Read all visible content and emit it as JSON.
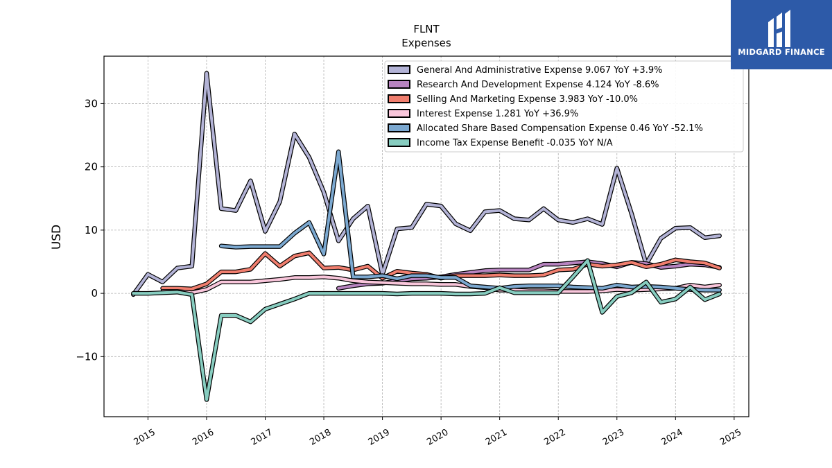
{
  "chart_data": {
    "type": "line",
    "title": "FLNT",
    "subtitle": "Expenses",
    "ylabel": "USD",
    "xlabel": "",
    "ylim": [
      -19.5,
      37.5
    ],
    "xlim": [
      2014.25,
      2025.25
    ],
    "yticks": [
      -10,
      0,
      10,
      20,
      30
    ],
    "xticks": [
      2015,
      2016,
      2017,
      2018,
      2019,
      2020,
      2021,
      2022,
      2023,
      2024,
      2025
    ],
    "grid": true,
    "legend_position": "top-right",
    "series": [
      {
        "name": "General And Administrative Expense  9.067 YoY +3.9%",
        "color": "#b3b3d6",
        "x": [
          2014.75,
          2015.0,
          2015.25,
          2015.5,
          2015.75,
          2016.0,
          2016.25,
          2016.5,
          2016.75,
          2017.0,
          2017.25,
          2017.5,
          2017.75,
          2018.0,
          2018.25,
          2018.5,
          2018.75,
          2019.0,
          2019.25,
          2019.5,
          2019.75,
          2020.0,
          2020.25,
          2020.5,
          2020.75,
          2021.0,
          2021.25,
          2021.5,
          2021.75,
          2022.0,
          2022.25,
          2022.5,
          2022.75,
          2023.0,
          2023.25,
          2023.5,
          2023.75,
          2024.0,
          2024.25,
          2024.5,
          2024.75
        ],
        "y": [
          -0.2,
          3.0,
          1.8,
          4.0,
          4.3,
          34.8,
          13.4,
          13.1,
          17.8,
          9.8,
          14.5,
          25.2,
          21.5,
          16.0,
          8.3,
          11.8,
          13.8,
          3.0,
          10.2,
          10.4,
          14.1,
          13.8,
          11.0,
          9.9,
          12.9,
          13.1,
          11.8,
          11.6,
          13.4,
          11.6,
          11.2,
          11.8,
          10.9,
          19.8,
          12.6,
          4.6,
          8.7,
          10.3,
          10.4,
          8.8,
          9.1
        ]
      },
      {
        "name": "Research And Development Expense  4.124 YoY -8.6%",
        "color": "#b884c0",
        "x": [
          2018.25,
          2018.5,
          2018.75,
          2019.0,
          2019.25,
          2019.5,
          2019.75,
          2020.0,
          2020.25,
          2020.5,
          2020.75,
          2021.0,
          2021.25,
          2021.5,
          2021.75,
          2022.0,
          2022.25,
          2022.5,
          2022.75,
          2023.0,
          2023.25,
          2023.5,
          2023.75,
          2024.0,
          2024.25,
          2024.5,
          2024.75
        ],
        "y": [
          0.8,
          1.2,
          1.5,
          1.6,
          2.0,
          2.3,
          2.4,
          2.6,
          3.0,
          3.3,
          3.6,
          3.7,
          3.7,
          3.7,
          4.6,
          4.6,
          4.8,
          5.0,
          4.7,
          4.2,
          4.9,
          4.7,
          4.1,
          4.3,
          4.6,
          4.5,
          4.1
        ]
      },
      {
        "name": "Selling And Marketing Expense  3.983 YoY -10.0%",
        "color": "#f07e6e",
        "x": [
          2015.25,
          2015.5,
          2015.75,
          2016.0,
          2016.25,
          2016.5,
          2016.75,
          2017.0,
          2017.25,
          2017.5,
          2017.75,
          2018.0,
          2018.25,
          2018.5,
          2018.75,
          2019.0,
          2019.25,
          2019.5,
          2019.75,
          2020.0,
          2020.25,
          2020.5,
          2020.75,
          2021.0,
          2021.25,
          2021.5,
          2021.75,
          2022.0,
          2022.25,
          2022.5,
          2022.75,
          2023.0,
          2023.25,
          2023.5,
          2023.75,
          2024.0,
          2024.25,
          2024.5,
          2024.75
        ],
        "y": [
          0.8,
          0.8,
          0.7,
          1.5,
          3.4,
          3.4,
          3.8,
          6.3,
          4.3,
          5.9,
          6.4,
          4.0,
          4.1,
          3.7,
          4.3,
          2.4,
          3.5,
          3.2,
          3.0,
          2.4,
          2.8,
          2.8,
          2.8,
          2.9,
          2.8,
          2.8,
          2.9,
          3.7,
          3.8,
          4.6,
          4.3,
          4.5,
          4.9,
          4.2,
          4.6,
          5.3,
          5.0,
          4.8,
          4.0
        ]
      },
      {
        "name": "Interest Expense  1.281 YoY +36.9%",
        "color": "#f9c6db",
        "x": [
          2015.25,
          2015.5,
          2015.75,
          2016.0,
          2016.25,
          2016.5,
          2016.75,
          2017.0,
          2017.25,
          2017.5,
          2017.75,
          2018.0,
          2018.25,
          2018.5,
          2018.75,
          2019.0,
          2019.25,
          2019.5,
          2019.75,
          2020.0,
          2020.25,
          2020.5,
          2020.75,
          2021.0,
          2021.25,
          2021.5,
          2021.75,
          2022.0,
          2022.25,
          2022.5,
          2022.75,
          2023.0,
          2023.25,
          2023.5,
          2023.75,
          2024.0,
          2024.25,
          2024.5,
          2024.75
        ],
        "y": [
          0.3,
          0.3,
          0.1,
          0.6,
          1.8,
          1.8,
          1.8,
          2.0,
          2.2,
          2.5,
          2.5,
          2.6,
          2.4,
          2.0,
          1.8,
          1.7,
          1.6,
          1.5,
          1.5,
          1.4,
          1.4,
          1.1,
          0.9,
          0.5,
          0.5,
          0.4,
          0.4,
          0.3,
          0.3,
          0.3,
          0.4,
          0.6,
          0.5,
          0.6,
          0.7,
          0.8,
          1.3,
          1.0,
          1.3
        ]
      },
      {
        "name": "Allocated Share Based Compensation Expense  0.46 YoY -52.1%",
        "color": "#7ba8d0",
        "x": [
          2016.25,
          2016.5,
          2016.75,
          2017.0,
          2017.25,
          2017.5,
          2017.75,
          2018.0,
          2018.25,
          2018.5,
          2018.75,
          2019.0,
          2019.25,
          2019.5,
          2019.75,
          2020.0,
          2020.25,
          2020.5,
          2020.75,
          2021.0,
          2021.25,
          2021.5,
          2021.75,
          2022.0,
          2022.25,
          2022.5,
          2022.75,
          2023.0,
          2023.25,
          2023.5,
          2023.75,
          2024.0,
          2024.25,
          2024.5,
          2024.75
        ],
        "y": [
          7.5,
          7.3,
          7.4,
          7.4,
          7.4,
          9.5,
          11.2,
          6.2,
          22.4,
          2.6,
          2.6,
          2.8,
          2.3,
          2.8,
          2.8,
          2.5,
          2.5,
          1.2,
          1.0,
          0.8,
          1.1,
          1.2,
          1.2,
          1.2,
          1.0,
          0.9,
          0.8,
          1.3,
          1.0,
          1.1,
          1.0,
          0.8,
          0.6,
          0.5,
          0.5
        ]
      },
      {
        "name": "Income Tax Expense Benefit  -0.035 YoY N/A",
        "color": "#87cdc0",
        "x": [
          2014.75,
          2015.0,
          2015.25,
          2015.5,
          2015.75,
          2016.0,
          2016.25,
          2016.5,
          2016.75,
          2017.0,
          2017.25,
          2017.5,
          2017.75,
          2018.0,
          2018.25,
          2018.5,
          2018.75,
          2019.0,
          2019.25,
          2019.5,
          2019.75,
          2020.0,
          2020.25,
          2020.5,
          2020.75,
          2021.0,
          2021.25,
          2021.5,
          2021.75,
          2022.0,
          2022.25,
          2022.5,
          2022.75,
          2023.0,
          2023.25,
          2023.5,
          2023.75,
          2024.0,
          2024.25,
          2024.5,
          2024.75
        ],
        "y": [
          0.0,
          0.0,
          0.1,
          0.2,
          -0.2,
          -16.8,
          -3.5,
          -3.5,
          -4.5,
          -2.5,
          -1.7,
          -0.9,
          0.0,
          0.0,
          0.0,
          0.0,
          0.0,
          0.0,
          -0.1,
          0.0,
          0.0,
          0.0,
          -0.1,
          -0.1,
          0.0,
          0.9,
          0.1,
          0.1,
          0.1,
          0.1,
          2.6,
          5.2,
          -3.0,
          -0.5,
          0.1,
          1.8,
          -1.4,
          -0.9,
          1.0,
          -1.0,
          -0.1
        ]
      }
    ]
  },
  "logo": {
    "text": "MIDGARD FINANCE",
    "background": "#2d5aa8"
  }
}
